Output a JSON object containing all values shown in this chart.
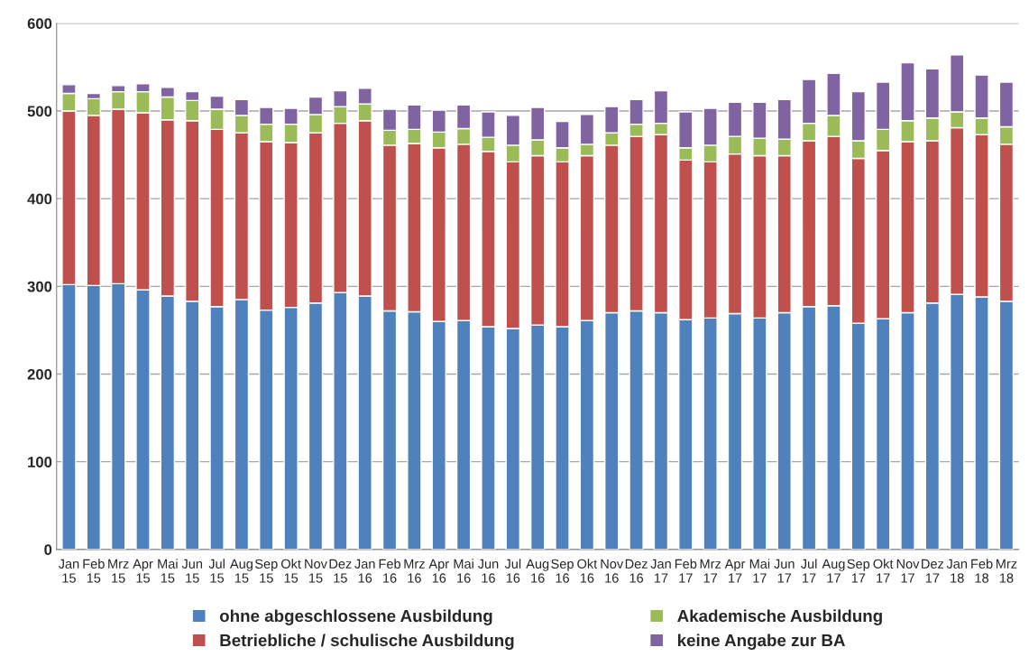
{
  "chart_data": {
    "type": "bar",
    "stacked": true,
    "categories": [
      "Jan\n15",
      "Feb\n15",
      "Mrz\n15",
      "Apr\n15",
      "Mai\n15",
      "Jun\n15",
      "Jul\n15",
      "Aug\n15",
      "Sep\n15",
      "Okt\n15",
      "Nov\n15",
      "Dez\n15",
      "Jan\n16",
      "Feb\n16",
      "Mrz\n16",
      "Apr\n16",
      "Mai\n16",
      "Jun\n16",
      "Jul\n16",
      "Aug\n16",
      "Sep\n16",
      "Okt\n16",
      "Nov\n16",
      "Dez\n16",
      "Jan\n17",
      "Feb\n17",
      "Mrz\n17",
      "Apr\n17",
      "Mai\n17",
      "Jun\n17",
      "Jul\n17",
      "Aug\n17",
      "Sep\n17",
      "Okt\n17",
      "Nov\n17",
      "Dez\n17",
      "Jan\n18",
      "Feb\n18",
      "Mrz\n18"
    ],
    "series": [
      {
        "name": "ohne abgeschlossene Ausbildung",
        "color": "#4f81bd",
        "values": [
          302,
          301,
          303,
          296,
          289,
          283,
          277,
          285,
          273,
          276,
          281,
          293,
          289,
          272,
          271,
          260,
          261,
          254,
          252,
          256,
          254,
          261,
          270,
          272,
          270,
          262,
          264,
          269,
          264,
          270,
          277,
          278,
          258,
          263,
          270,
          281,
          291,
          288,
          283
        ]
      },
      {
        "name": "Betriebliche / schulische Ausbildung",
        "color": "#c0504d",
        "values": [
          198,
          194,
          199,
          202,
          201,
          206,
          202,
          190,
          192,
          188,
          194,
          193,
          200,
          189,
          192,
          198,
          201,
          200,
          190,
          193,
          188,
          188,
          191,
          199,
          203,
          182,
          178,
          182,
          185,
          179,
          189,
          193,
          188,
          192,
          195,
          185,
          190,
          185,
          179
        ]
      },
      {
        "name": "Akademische Ausbildung",
        "color": "#9bbb59",
        "values": [
          20,
          19,
          20,
          24,
          26,
          23,
          23,
          20,
          20,
          21,
          21,
          19,
          19,
          17,
          16,
          18,
          18,
          16,
          19,
          18,
          16,
          13,
          14,
          14,
          13,
          14,
          19,
          20,
          20,
          19,
          20,
          24,
          20,
          24,
          24,
          26,
          18,
          19,
          20
        ]
      },
      {
        "name": "keine Angabe zur BA",
        "color": "#8064a2",
        "values": [
          10,
          6,
          7,
          9,
          11,
          10,
          15,
          18,
          19,
          18,
          20,
          18,
          18,
          24,
          28,
          25,
          27,
          29,
          34,
          37,
          30,
          34,
          30,
          28,
          37,
          41,
          42,
          39,
          41,
          45,
          50,
          48,
          56,
          54,
          66,
          56,
          65,
          49,
          51
        ]
      }
    ],
    "ylim": [
      0,
      600
    ],
    "yticks": [
      0,
      100,
      200,
      300,
      400,
      500,
      600
    ],
    "grid": "y",
    "legend": "bottom"
  }
}
